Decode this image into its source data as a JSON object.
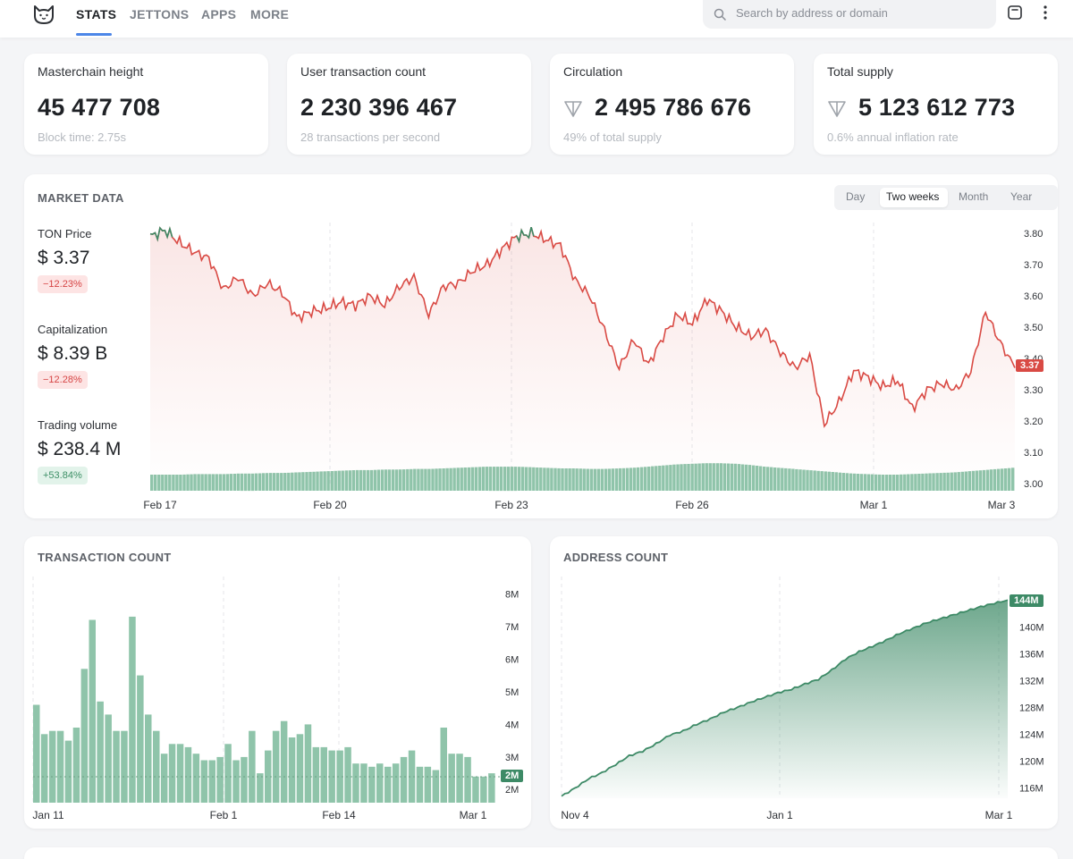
{
  "nav": {
    "items": [
      "STATS",
      "JETTONS",
      "APPS",
      "MORE"
    ],
    "search_placeholder": "Search by address or domain"
  },
  "stats": [
    {
      "label": "Masterchain height",
      "value": "45 477 708",
      "sub": "Block time: 2.75s",
      "icon": ""
    },
    {
      "label": "User transaction count",
      "value": "2 230 396 467",
      "sub": "28 transactions per second",
      "icon": ""
    },
    {
      "label": "Circulation",
      "value": "2 495 786 676",
      "sub": "49% of total supply",
      "icon": "ton-icon"
    },
    {
      "label": "Total supply",
      "value": "5 123 612 773",
      "sub": "0.6% annual inflation rate",
      "icon": "ton-icon"
    }
  ],
  "market": {
    "title": "MARKET DATA",
    "tabs": [
      "Day",
      "Two weeks",
      "Month",
      "Year"
    ],
    "active_tab": "Two weeks",
    "price_label": "TON Price",
    "price_value": "$ 3.37",
    "price_change": "−12.23%",
    "cap_label": "Capitalization",
    "cap_value": "$ 8.39 B",
    "cap_change": "−12.28%",
    "vol_label": "Trading volume",
    "vol_value": "$ 238.4 M",
    "vol_change": "+53.84%",
    "current_tag": "3.37"
  },
  "colors": {
    "up": "#3d8a66",
    "down": "#d94a44",
    "accent": "#4c86e8",
    "bar": "#8fc4aa"
  },
  "chart_data": [
    {
      "type": "line",
      "title": "MARKET DATA",
      "x_ticks": [
        "Feb 17",
        "Feb 20",
        "Feb 23",
        "Feb 26",
        "Mar 1",
        "Mar 3"
      ],
      "y_ticks": [
        "3.80",
        "3.70",
        "3.60",
        "3.50",
        "3.40",
        "3.30",
        "3.20",
        "3.10",
        "3.00"
      ],
      "ylim": [
        3.0,
        3.8
      ],
      "series": [
        {
          "name": "TON Price",
          "points": [
            [
              0,
              3.79
            ],
            [
              1,
              3.81
            ],
            [
              2,
              3.77
            ],
            [
              3,
              3.74
            ],
            [
              4,
              3.72
            ],
            [
              5,
              3.62
            ],
            [
              6,
              3.66
            ],
            [
              7,
              3.6
            ],
            [
              8,
              3.64
            ],
            [
              9,
              3.61
            ],
            [
              10,
              3.53
            ],
            [
              11,
              3.55
            ],
            [
              12,
              3.56
            ],
            [
              13,
              3.58
            ],
            [
              14,
              3.57
            ],
            [
              15,
              3.6
            ],
            [
              16,
              3.57
            ],
            [
              17,
              3.63
            ],
            [
              18,
              3.66
            ],
            [
              19,
              3.54
            ],
            [
              20,
              3.63
            ],
            [
              21,
              3.64
            ],
            [
              22,
              3.68
            ],
            [
              23,
              3.7
            ],
            [
              24,
              3.75
            ],
            [
              25,
              3.79
            ],
            [
              26,
              3.8
            ],
            [
              27,
              3.78
            ],
            [
              28,
              3.76
            ],
            [
              29,
              3.65
            ],
            [
              30,
              3.6
            ],
            [
              31,
              3.49
            ],
            [
              32,
              3.37
            ],
            [
              33,
              3.46
            ],
            [
              34,
              3.38
            ],
            [
              35,
              3.47
            ],
            [
              36,
              3.54
            ],
            [
              37,
              3.51
            ],
            [
              38,
              3.59
            ],
            [
              39,
              3.55
            ],
            [
              40,
              3.5
            ],
            [
              41,
              3.47
            ],
            [
              42,
              3.49
            ],
            [
              43,
              3.42
            ],
            [
              44,
              3.37
            ],
            [
              45,
              3.41
            ],
            [
              46,
              3.19
            ],
            [
              47,
              3.26
            ],
            [
              48,
              3.36
            ],
            [
              49,
              3.34
            ],
            [
              50,
              3.31
            ],
            [
              51,
              3.33
            ],
            [
              52,
              3.24
            ],
            [
              53,
              3.3
            ],
            [
              54,
              3.32
            ],
            [
              55,
              3.3
            ],
            [
              56,
              3.36
            ],
            [
              57,
              3.55
            ],
            [
              58,
              3.45
            ],
            [
              59,
              3.37
            ]
          ]
        }
      ],
      "volume": [
        28,
        28,
        28,
        29,
        29,
        29,
        30,
        30,
        31,
        31,
        32,
        33,
        34,
        35,
        36,
        36,
        37,
        37,
        38,
        38,
        39,
        40,
        41,
        42,
        42,
        42,
        41,
        40,
        39,
        39,
        38,
        38,
        39,
        40,
        42,
        44,
        46,
        47,
        48,
        48,
        47,
        45,
        42,
        40,
        38,
        36,
        34,
        32,
        30,
        29,
        28,
        28,
        29,
        30,
        31,
        32,
        34,
        36,
        38,
        40
      ]
    },
    {
      "type": "bar",
      "title": "TRANSACTION COUNT",
      "x_ticks": [
        "Jan 11",
        "Feb 1",
        "Feb 14",
        "Mar 1"
      ],
      "y_ticks": [
        "8M",
        "7M",
        "6M",
        "5M",
        "4M",
        "3M",
        "2M"
      ],
      "ylim": [
        1.6,
        8.2
      ],
      "current_tag": "2M",
      "values": [
        4.6,
        3.7,
        3.8,
        3.8,
        3.5,
        3.9,
        5.7,
        7.2,
        4.7,
        4.3,
        3.8,
        3.8,
        7.3,
        5.5,
        4.3,
        3.8,
        3.1,
        3.4,
        3.4,
        3.3,
        3.1,
        2.9,
        2.9,
        3.0,
        3.4,
        2.9,
        3.0,
        3.8,
        2.5,
        3.2,
        3.8,
        4.1,
        3.6,
        3.7,
        4.0,
        3.3,
        3.3,
        3.2,
        3.2,
        3.3,
        2.8,
        2.8,
        2.7,
        2.8,
        2.7,
        2.8,
        3.0,
        3.2,
        2.7,
        2.7,
        2.6,
        3.9,
        3.1,
        3.1,
        3.0,
        2.4,
        2.4,
        2.5
      ]
    },
    {
      "type": "area",
      "title": "ADDRESS COUNT",
      "x_ticks": [
        "Nov 4",
        "Jan 1",
        "Mar 1"
      ],
      "y_ticks": [
        "144M",
        "140M",
        "136M",
        "132M",
        "128M",
        "124M",
        "120M",
        "116M"
      ],
      "ylim": [
        114.5,
        145.5
      ],
      "current_tag": "144M",
      "values": [
        114.8,
        116,
        117.4,
        118.3,
        119.5,
        120.8,
        121.5,
        122.6,
        123.9,
        124.5,
        125.5,
        126.3,
        127.3,
        128.0,
        128.8,
        129.5,
        130.2,
        130.7,
        131.5,
        132.2,
        133.6,
        135.2,
        136.3,
        137.1,
        138.0,
        139.0,
        139.8,
        140.6,
        141.2,
        141.8,
        142.4,
        143.0,
        143.5,
        144.0
      ]
    }
  ]
}
